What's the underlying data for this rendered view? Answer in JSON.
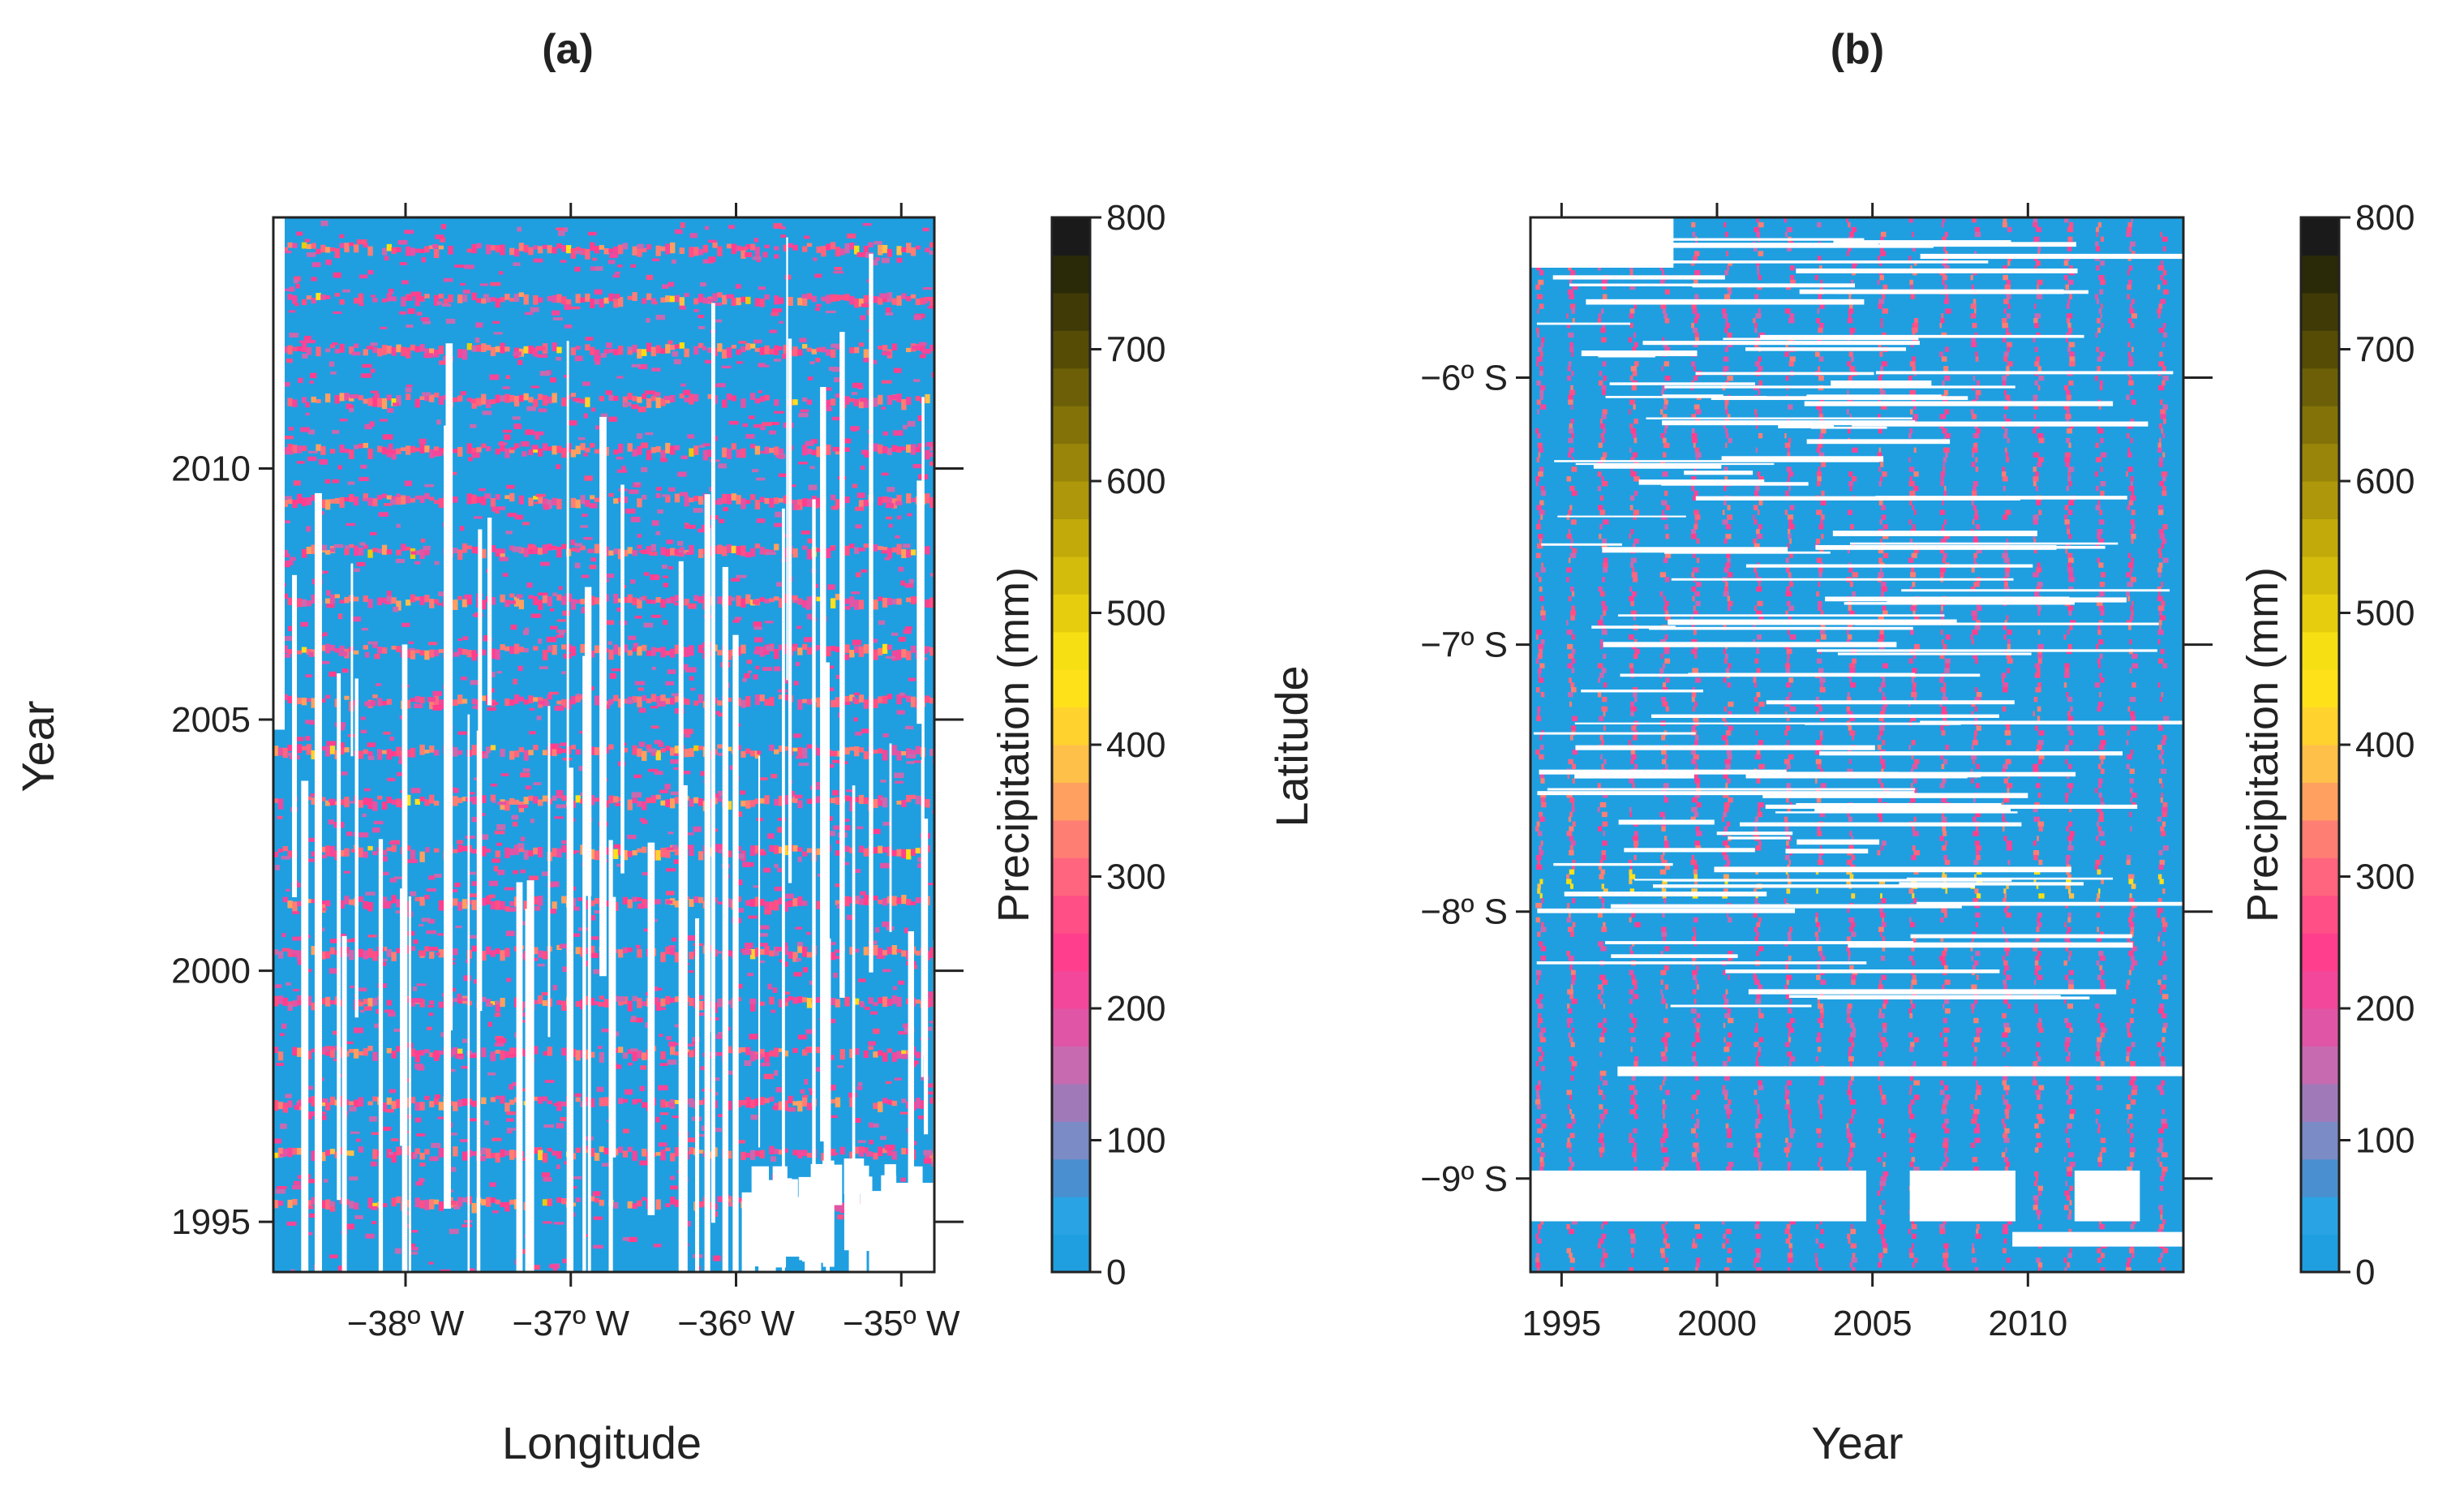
{
  "chart_data": [
    {
      "type": "heatmap",
      "title": "(a)",
      "xlabel": "Longitude",
      "ylabel": "Year",
      "xlim": [
        -38.8,
        -34.8
      ],
      "ylim": [
        1994,
        2015
      ],
      "x_ticks": [
        {
          "value": -38,
          "label": "−38º W"
        },
        {
          "value": -37,
          "label": "−37º W"
        },
        {
          "value": -36,
          "label": "−36º W"
        },
        {
          "value": -35,
          "label": "−35º W"
        }
      ],
      "y_ticks": [
        {
          "value": 1995,
          "label": "1995"
        },
        {
          "value": 2000,
          "label": "2000"
        },
        {
          "value": 2005,
          "label": "2005"
        },
        {
          "value": 2010,
          "label": "2010"
        }
      ],
      "wet_season_peak_years": [
        1995,
        1996,
        1997,
        1998,
        1999,
        2000,
        2001,
        2002,
        2003,
        2004,
        2005,
        2006,
        2007,
        2008,
        2009,
        2010,
        2011,
        2012,
        2013,
        2014
      ],
      "colorbar": {
        "label": "Precipitation (mm)",
        "range": [
          0,
          800
        ],
        "ticks": [
          "0",
          "100",
          "200",
          "300",
          "400",
          "500",
          "600",
          "700",
          "800"
        ]
      }
    },
    {
      "type": "heatmap",
      "title": "(b)",
      "xlabel": "Year",
      "ylabel": "Latitude",
      "xlim": [
        1994,
        2015
      ],
      "ylim": [
        -9.35,
        -5.4
      ],
      "x_ticks": [
        {
          "value": 1995,
          "label": "1995"
        },
        {
          "value": 2000,
          "label": "2000"
        },
        {
          "value": 2005,
          "label": "2005"
        },
        {
          "value": 2010,
          "label": "2010"
        }
      ],
      "y_ticks": [
        {
          "value": -6,
          "label": "−6º S"
        },
        {
          "value": -7,
          "label": "−7º S"
        },
        {
          "value": -8,
          "label": "−8º S"
        },
        {
          "value": -9,
          "label": "−9º S"
        }
      ],
      "colorbar": {
        "label": "Precipitation (mm)",
        "range": [
          0,
          800
        ],
        "ticks": [
          "0",
          "100",
          "200",
          "300",
          "400",
          "500",
          "600",
          "700",
          "800"
        ]
      }
    }
  ],
  "colors": {
    "low": "#1f9fe0",
    "ramp": [
      "#1f9fe0",
      "#2aa3e4",
      "#4a90d0",
      "#7a8bc6",
      "#a07ab8",
      "#c86ab0",
      "#e055a6",
      "#f2479a",
      "#ff3f8e",
      "#ff4f86",
      "#ff657e",
      "#ff7e74",
      "#ffa060",
      "#ffc04a",
      "#ffd22e",
      "#ffe11a",
      "#f6df12",
      "#e6cd0e",
      "#d4bc0c",
      "#c2aa0b",
      "#ae970a",
      "#998509",
      "#837208",
      "#6c5f07",
      "#564c06",
      "#403a06",
      "#2b2a08",
      "#1a1a1a"
    ]
  }
}
